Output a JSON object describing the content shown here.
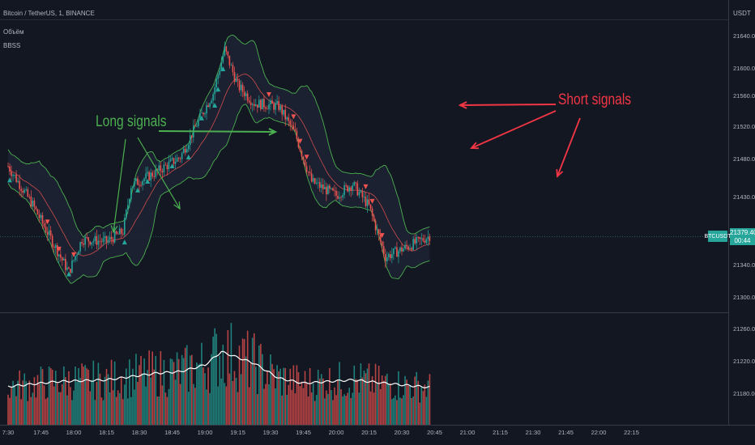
{
  "legend": {
    "symbol": "Bitcoin / TetherUS, 1, BINANCE",
    "indicator_1": "Объём",
    "indicator_2": "BBSS"
  },
  "currency_label": "USDT",
  "current_price": {
    "ticker": "BTCUSDT",
    "price": "21379.40",
    "countdown": "00:44"
  },
  "annotations": {
    "long": "Long signals",
    "short": "Short signals"
  },
  "colors": {
    "background": "#131722",
    "up": "#26a69a",
    "down": "#ef5350",
    "band_upper_lower": "#4caf50",
    "band_basis": "#ef5350",
    "band_fill": "#1b2233",
    "volume_ma": "#ffffff",
    "long_annotation": "#4caf50",
    "short_annotation": "#f23645",
    "grid": "#2a2e39",
    "text": "#b2b5be"
  },
  "chart_data": {
    "type": "candlestick",
    "title": "Bitcoin / TetherUS, 1, BINANCE",
    "price_axis": {
      "unit": "USDT",
      "ticks": [
        "21640.00",
        "21600.00",
        "21560.00",
        "21520.00",
        "21480.00",
        "21430.00",
        "21380.00",
        "21340.00",
        "21300.00",
        "21260.00",
        "21220.00",
        "21180.00"
      ]
    },
    "time_axis": {
      "ticks": [
        "7:30",
        "17:45",
        "18:00",
        "18:15",
        "18:30",
        "18:45",
        "19:00",
        "19:15",
        "19:30",
        "19:45",
        "20:00",
        "20:15",
        "20:30",
        "20:45",
        "21:00",
        "21:15",
        "21:30",
        "21:45",
        "22:00",
        "22:15"
      ]
    },
    "price_anchors": [
      {
        "time": "17:30",
        "price": 21470
      },
      {
        "time": "17:45",
        "price": 21420
      },
      {
        "time": "18:00",
        "price": 21360
      },
      {
        "time": "18:07",
        "price": 21332
      },
      {
        "time": "18:15",
        "price": 21375
      },
      {
        "time": "18:30",
        "price": 21372
      },
      {
        "time": "18:40",
        "price": 21385
      },
      {
        "time": "18:45",
        "price": 21445
      },
      {
        "time": "19:00",
        "price": 21462
      },
      {
        "time": "19:15",
        "price": 21482
      },
      {
        "time": "19:25",
        "price": 21525
      },
      {
        "time": "19:35",
        "price": 21565
      },
      {
        "time": "19:42",
        "price": 21622
      },
      {
        "time": "19:50",
        "price": 21575
      },
      {
        "time": "20:00",
        "price": 21552
      },
      {
        "time": "20:15",
        "price": 21548
      },
      {
        "time": "20:25",
        "price": 21512
      },
      {
        "time": "20:35",
        "price": 21450
      },
      {
        "time": "20:50",
        "price": 21432
      },
      {
        "time": "21:00",
        "price": 21447
      },
      {
        "time": "21:10",
        "price": 21418
      },
      {
        "time": "21:20",
        "price": 21352
      },
      {
        "time": "21:30",
        "price": 21362
      },
      {
        "time": "21:40",
        "price": 21372
      },
      {
        "time": "21:47",
        "price": 21379.4
      }
    ],
    "volume_ma_anchors": [
      {
        "time": "17:30",
        "value": 21190
      },
      {
        "time": "18:00",
        "value": 21196
      },
      {
        "time": "18:30",
        "value": 21198
      },
      {
        "time": "19:00",
        "value": 21206
      },
      {
        "time": "19:15",
        "value": 21208
      },
      {
        "time": "19:30",
        "value": 21216
      },
      {
        "time": "19:40",
        "value": 21232
      },
      {
        "time": "20:00",
        "value": 21218
      },
      {
        "time": "20:15",
        "value": 21200
      },
      {
        "time": "20:30",
        "value": 21194
      },
      {
        "time": "21:00",
        "value": 21198
      },
      {
        "time": "21:30",
        "value": 21192
      },
      {
        "time": "21:47",
        "value": 21189
      }
    ],
    "long_signal_times": [
      "17:31",
      "18:07",
      "18:41",
      "18:49",
      "18:55",
      "19:10",
      "19:20",
      "19:28",
      "19:36",
      "19:38",
      "19:41"
    ],
    "short_signal_times": [
      "17:54",
      "18:01",
      "18:10",
      "20:09",
      "20:24",
      "20:28",
      "20:32",
      "21:08",
      "21:12",
      "21:18"
    ]
  }
}
